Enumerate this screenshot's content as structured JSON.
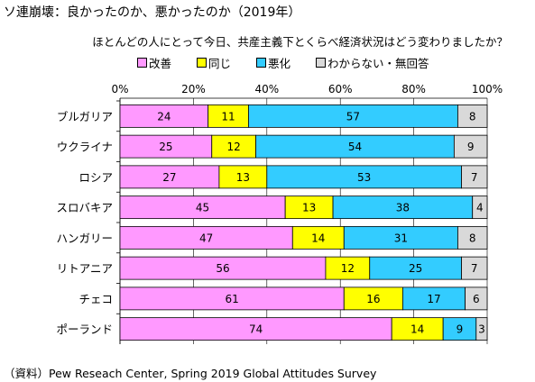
{
  "title": "ソ連崩壊：良かったのか、悪かったのか（2019年）",
  "subtitle": "ほとんどの人にとって今日、共産主義下とくらべ経済状況はどう変わりましたか？",
  "source": "（資料）Pew Reseach Center, Spring 2019 Global Attitudes Survey",
  "chart_data": {
    "type": "bar",
    "orientation": "horizontal",
    "stacked": true,
    "categories": [
      "ブルガリア",
      "ウクライナ",
      "ロシア",
      "スロバキア",
      "ハンガリー",
      "リトアニア",
      "チェコ",
      "ポーランド"
    ],
    "series": [
      {
        "name": "改善",
        "color": "#ff99ff",
        "values": [
          24,
          25,
          27,
          45,
          47,
          56,
          61,
          74
        ]
      },
      {
        "name": "同じ",
        "color": "#ffff00",
        "values": [
          11,
          12,
          13,
          13,
          14,
          12,
          16,
          14
        ]
      },
      {
        "name": "悪化",
        "color": "#33ccff",
        "values": [
          57,
          54,
          53,
          38,
          31,
          25,
          17,
          9
        ]
      },
      {
        "name": "わからない・無回答",
        "color": "#d9d9d9",
        "values": [
          8,
          9,
          7,
          4,
          8,
          7,
          6,
          3
        ]
      }
    ],
    "xlim": [
      0,
      100
    ],
    "xticks": [
      "0%",
      "20%",
      "40%",
      "60%",
      "80%",
      "100%"
    ],
    "legend_position": "top",
    "grid": true
  }
}
